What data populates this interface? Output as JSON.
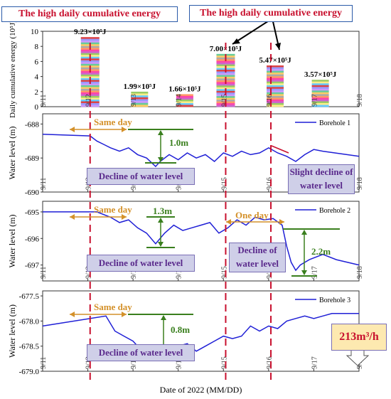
{
  "colors": {
    "water_line": "#1f1fd6",
    "energy_dash": "#c8102e",
    "range_green": "#3a7f1e",
    "day_orange": "#d4912a",
    "callout_red": "#c8102e",
    "box_purple_fill": "#cfcfe8",
    "box_purple_text": "#5a2a8c",
    "flow_box_fill": "#fde9b0",
    "flow_box_text": "#c8102e",
    "panel_border": "#333333"
  },
  "callouts": {
    "top_left": "The high daily cumulative energy",
    "top_right": "The high daily cumulative energy",
    "same_day_1": "Same day",
    "same_day_2": "Same day",
    "same_day_3": "Same day",
    "one_day": "One day",
    "range_1": "1.0m",
    "range_2": "1.3m",
    "range_3": "2.2m",
    "range_4": "0.8m",
    "decline_1": "Decline of water level",
    "decline_2": "Slight decline of water level",
    "decline_3": "Decline of water level",
    "decline_4": "Decline of water level",
    "decline_5": "Decline of water level",
    "flow": "213m³/h"
  },
  "chart_data": [
    {
      "type": "bar",
      "ylabel": "Daily cumulative energy (10⁵J)",
      "ylim": [
        0,
        10
      ],
      "yticks": [
        "0",
        "2",
        "4",
        "6",
        "8",
        "10"
      ],
      "categories": [
        "9/12",
        "9/13",
        "9/14",
        "9/15",
        "9/16",
        "9/17"
      ],
      "values": [
        9.23,
        1.99,
        1.66,
        7.0,
        5.47,
        3.57
      ],
      "labels": [
        "9.23×10⁵J",
        "1.99×10⁵J",
        "1.66×10⁵J",
        "7.00×10⁵J",
        "5.47×10⁵J",
        "3.57×10⁵J"
      ]
    },
    {
      "type": "line",
      "series": [
        {
          "name": "Borehole 1"
        }
      ],
      "ylabel": "Water level (m)",
      "ylim": [
        -690,
        -687.7
      ],
      "yticks": [
        "-688",
        "-689",
        "-690"
      ],
      "xlim": [
        0,
        7
      ],
      "x": [
        0,
        1.05,
        1.2,
        1.35,
        1.5,
        1.7,
        1.9,
        2.1,
        2.3,
        2.5,
        2.6,
        2.8,
        3.0,
        3.2,
        3.4,
        3.6,
        3.8,
        4.0,
        4.2,
        4.4,
        4.6,
        4.8,
        5.0,
        5.2,
        5.4,
        5.6,
        5.8,
        6.0,
        6.2,
        7.0
      ],
      "y": [
        -688.3,
        -688.35,
        -688.5,
        -688.6,
        -688.7,
        -688.8,
        -688.7,
        -688.9,
        -689.0,
        -689.25,
        -689.1,
        -688.9,
        -689.05,
        -688.85,
        -689.0,
        -688.9,
        -689.1,
        -688.85,
        -688.95,
        -688.8,
        -688.9,
        -688.85,
        -688.7,
        -688.85,
        -688.95,
        -689.1,
        -688.9,
        -688.75,
        -688.8,
        -688.95
      ]
    },
    {
      "type": "line",
      "series": [
        {
          "name": "Borehole 2"
        }
      ],
      "ylabel": "Water level (m)",
      "ylim": [
        -697.6,
        -694.6
      ],
      "yticks": [
        "-695",
        "-696",
        "-697"
      ],
      "xlim": [
        0,
        7
      ],
      "x": [
        0,
        1.2,
        1.5,
        1.7,
        1.9,
        2.1,
        2.3,
        2.5,
        2.7,
        2.9,
        3.1,
        3.3,
        3.5,
        3.7,
        3.9,
        4.1,
        4.3,
        4.5,
        4.7,
        4.9,
        5.1,
        5.3,
        5.4,
        5.5,
        5.6,
        5.7,
        5.9,
        6.2,
        6.5,
        7.0
      ],
      "y": [
        -695.0,
        -695.0,
        -695.2,
        -695.4,
        -695.3,
        -695.6,
        -695.8,
        -696.2,
        -695.8,
        -695.5,
        -695.7,
        -695.6,
        -695.5,
        -695.4,
        -695.8,
        -695.6,
        -695.3,
        -695.5,
        -695.2,
        -695.3,
        -695.25,
        -695.5,
        -696.3,
        -696.9,
        -697.2,
        -697.0,
        -696.8,
        -696.6,
        -696.8,
        -697.0
      ]
    },
    {
      "type": "line",
      "series": [
        {
          "name": "Borehole 3"
        }
      ],
      "ylabel": "Water level (m)",
      "ylim": [
        -679.0,
        -677.4
      ],
      "yticks": [
        "-677.5",
        "-678.0",
        "-678.5",
        "-679.0"
      ],
      "xlim": [
        0,
        7
      ],
      "x": [
        0,
        1.4,
        1.6,
        1.8,
        2.0,
        2.2,
        2.4,
        2.6,
        2.8,
        3.0,
        3.2,
        3.4,
        3.6,
        3.8,
        4.0,
        4.2,
        4.4,
        4.6,
        4.8,
        5.0,
        5.2,
        5.4,
        5.6,
        5.8,
        6.0,
        6.2,
        6.4,
        7.0
      ],
      "y": [
        -678.1,
        -677.9,
        -678.2,
        -678.3,
        -678.4,
        -678.6,
        -678.55,
        -678.65,
        -678.6,
        -678.5,
        -678.45,
        -678.6,
        -678.5,
        -678.4,
        -678.3,
        -678.35,
        -678.3,
        -678.1,
        -678.2,
        -678.1,
        -678.15,
        -678.0,
        -677.95,
        -677.9,
        -677.95,
        -677.9,
        -677.85,
        -677.85
      ]
    }
  ],
  "x_axis": {
    "ticks": [
      "9/11",
      "9/12",
      "9/13",
      "9/14",
      "9/15",
      "9/16",
      "9/17",
      "9/18"
    ],
    "label": "Date of 2022 (MM/DD)"
  }
}
